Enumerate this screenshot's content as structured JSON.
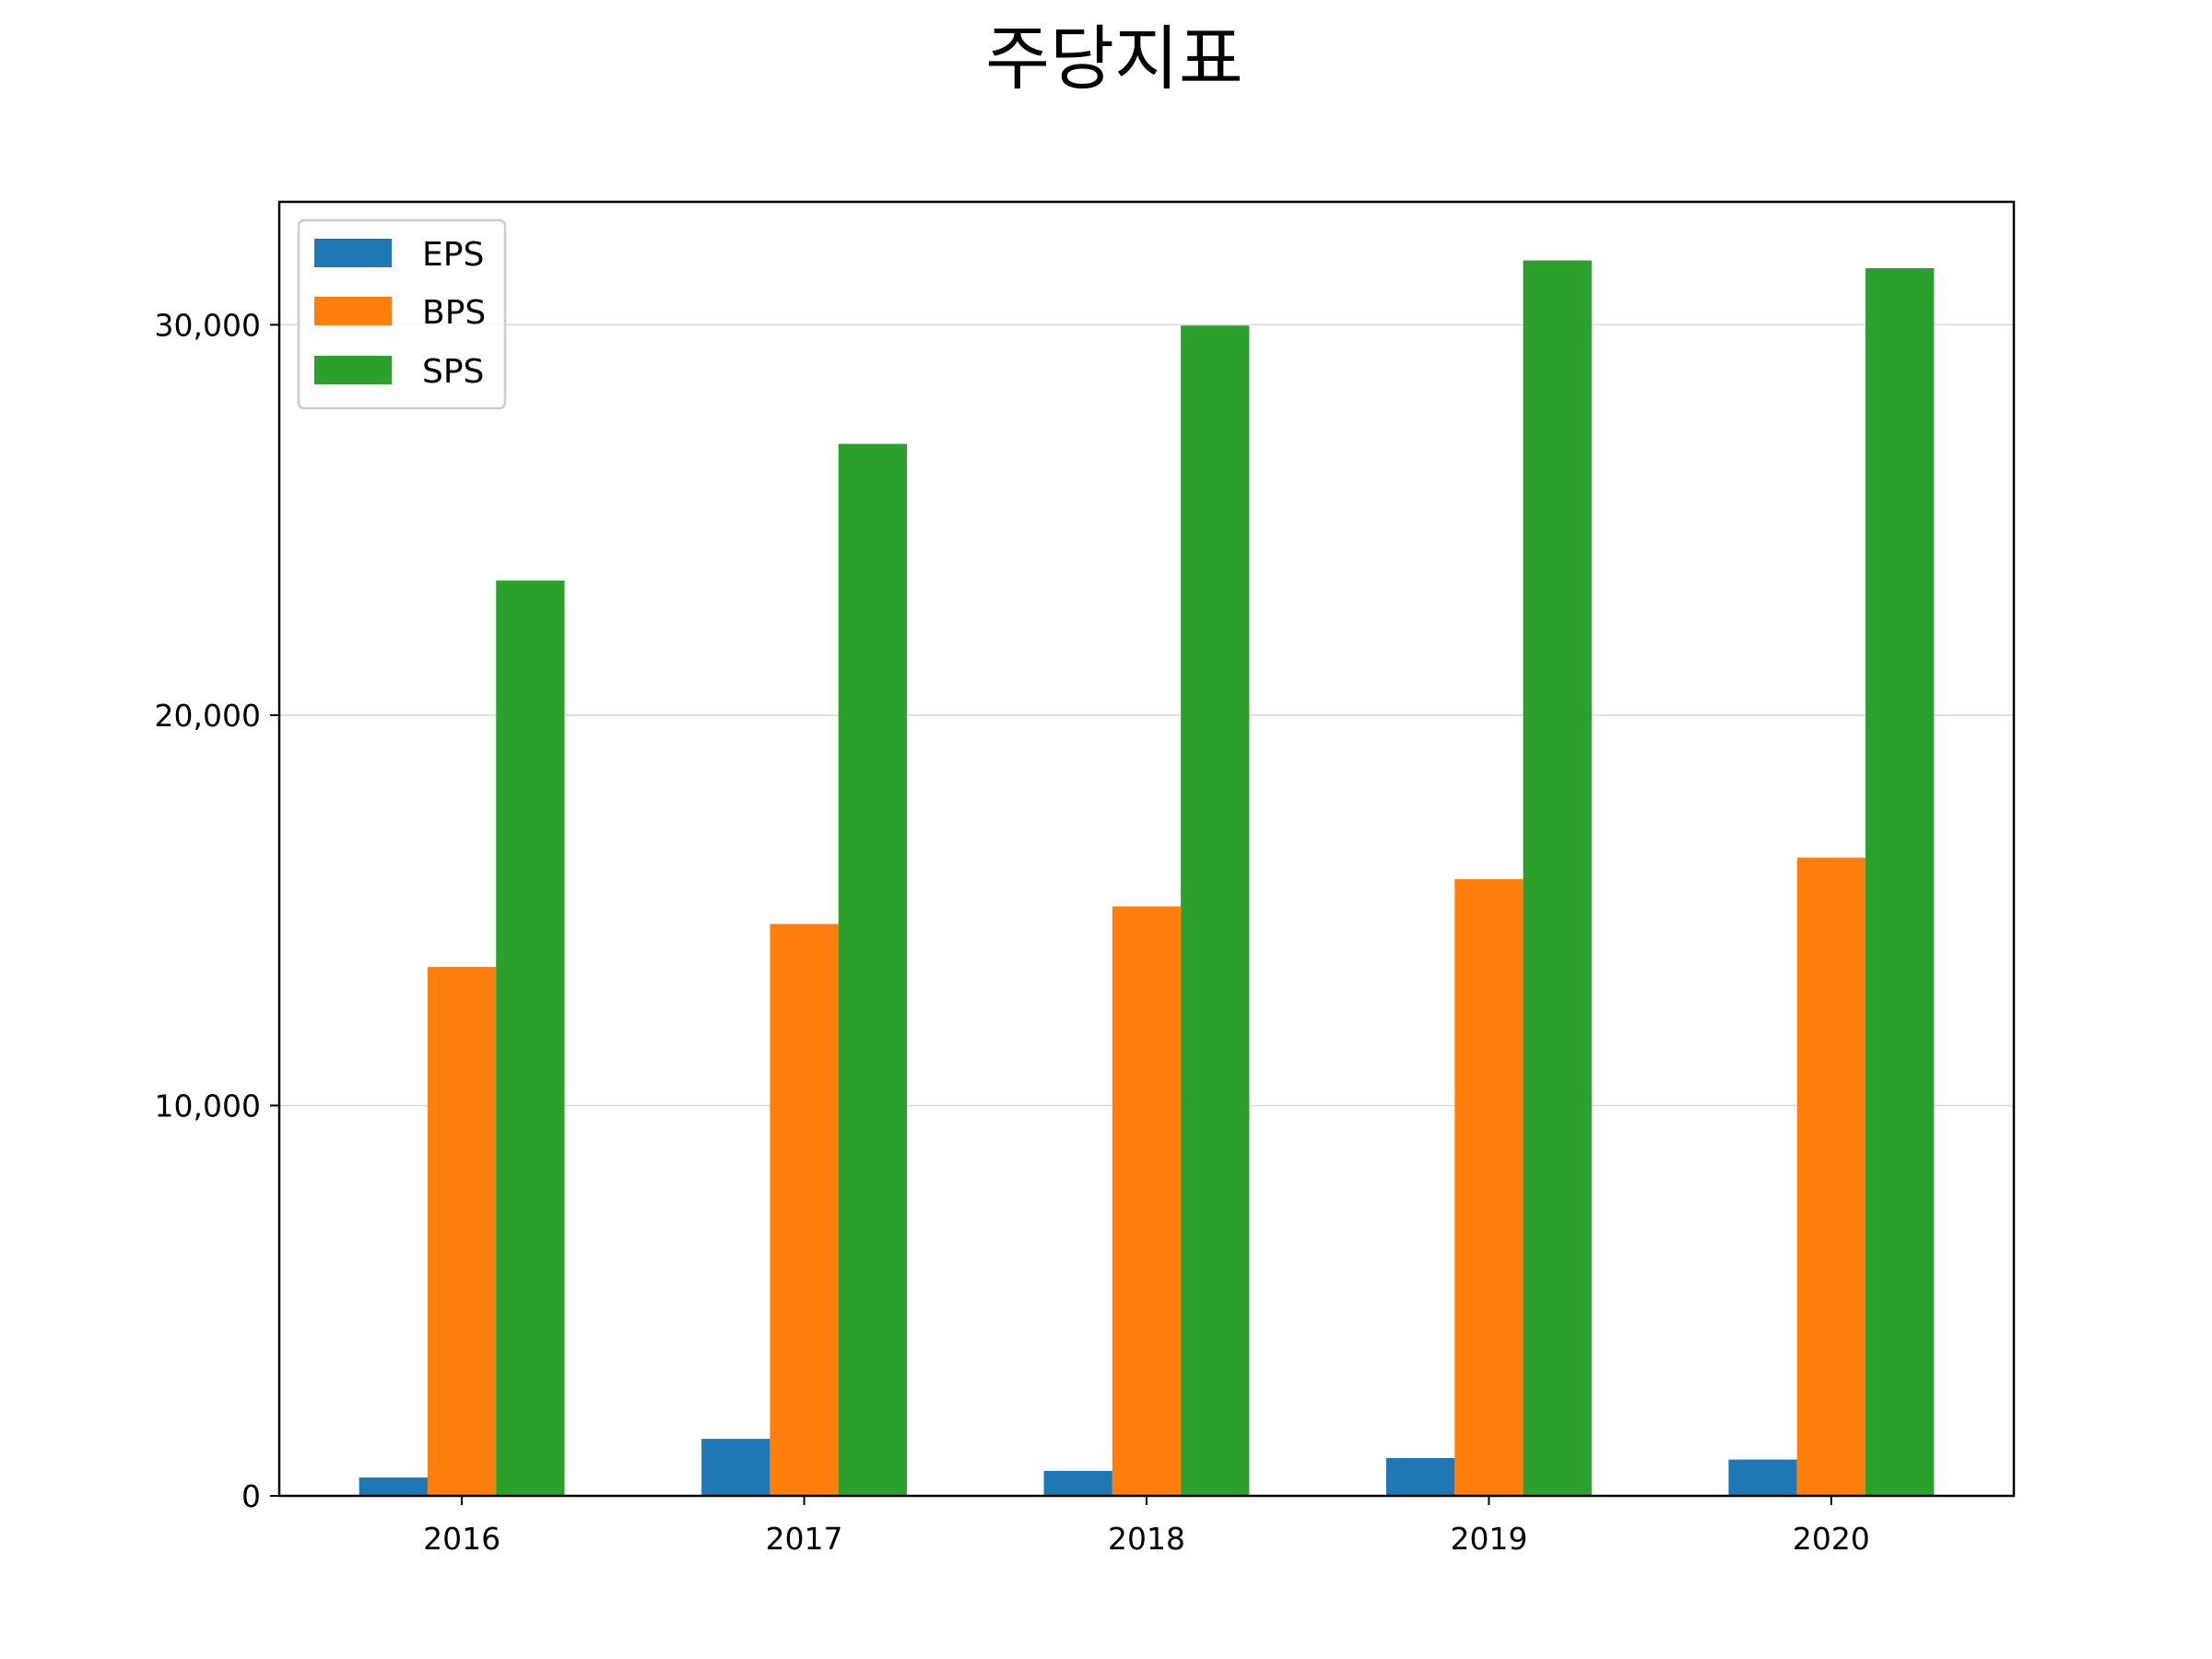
{
  "chart_data": {
    "type": "bar",
    "title": "주당지표",
    "xlabel": "",
    "ylabel": "",
    "categories": [
      "2016",
      "2017",
      "2018",
      "2019",
      "2020"
    ],
    "series": [
      {
        "name": "EPS",
        "color": "#1f77b4",
        "values": [
          470,
          1460,
          640,
          970,
          930
        ]
      },
      {
        "name": "BPS",
        "color": "#ff7f0e",
        "values": [
          13550,
          14650,
          15100,
          15800,
          16350
        ]
      },
      {
        "name": "SPS",
        "color": "#2ca02c",
        "values": [
          23450,
          26950,
          29980,
          31650,
          31450
        ]
      }
    ],
    "ylim": [
      0,
      33150
    ],
    "yticks": [
      0,
      10000,
      20000,
      30000
    ],
    "ytick_labels": [
      "0",
      "10,000",
      "20,000",
      "30,000"
    ],
    "grid": "horizontal",
    "legend_position": "upper left"
  }
}
